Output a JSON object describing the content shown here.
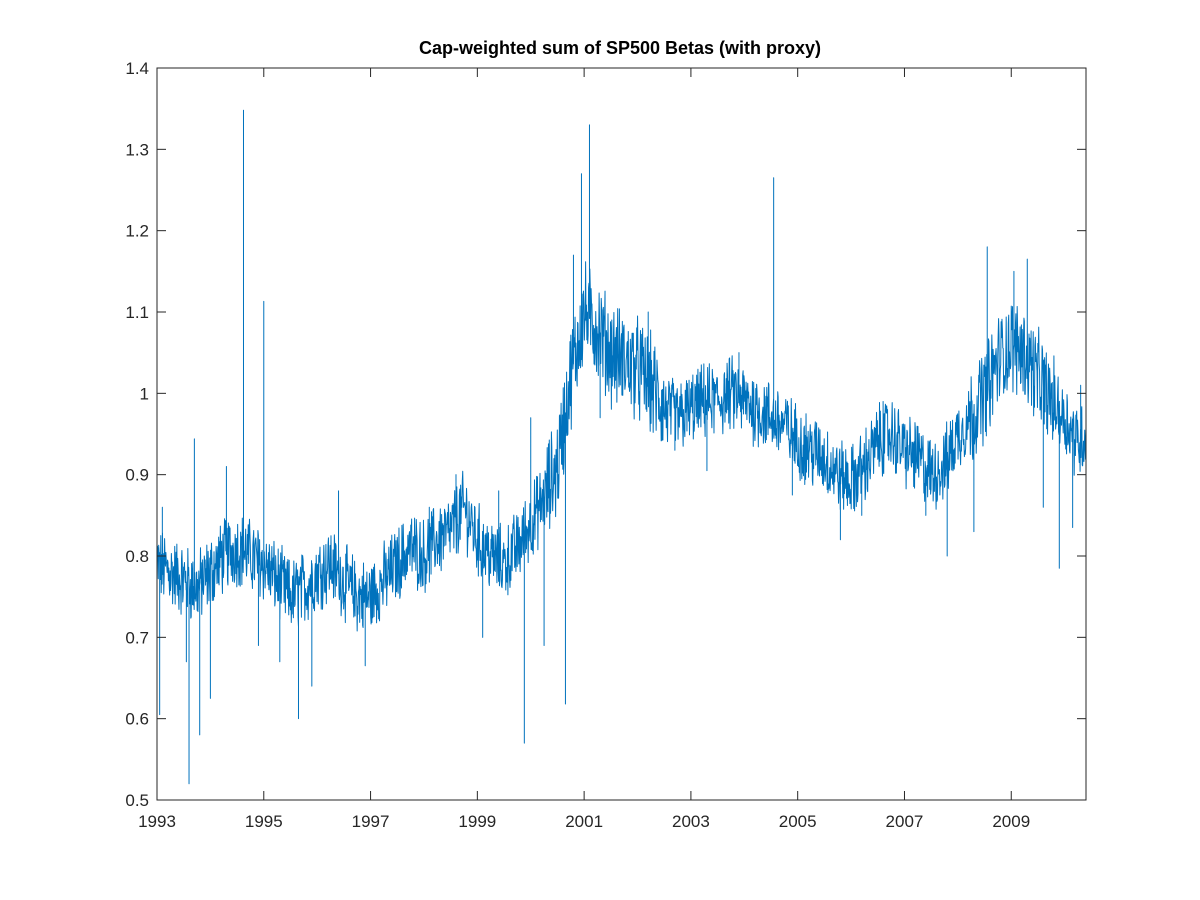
{
  "chart_data": {
    "type": "line",
    "title": "Cap-weighted sum of SP500 Betas (with proxy)",
    "xlabel": "",
    "ylabel": "",
    "xlim": [
      1993.0,
      2010.4
    ],
    "ylim": [
      0.5,
      1.4
    ],
    "x_ticks": [
      1993,
      1995,
      1997,
      1999,
      2001,
      2003,
      2005,
      2007,
      2009
    ],
    "x_tick_labels": [
      "1993",
      "1995",
      "1997",
      "1999",
      "2001",
      "2003",
      "2005",
      "2007",
      "2009"
    ],
    "y_ticks": [
      0.5,
      0.6,
      0.7,
      0.8,
      0.9,
      1.0,
      1.1,
      1.2,
      1.3,
      1.4
    ],
    "y_tick_labels": [
      "0.5",
      "0.6",
      "0.7",
      "0.8",
      "0.9",
      "1",
      "1.1",
      "1.2",
      "1.3",
      "1.4"
    ],
    "grid": false,
    "legend": "none",
    "line_color": "#0072BD",
    "series": [
      {
        "x": [
          1993.0,
          1993.25,
          1993.5,
          1993.75,
          1994.0,
          1994.25,
          1994.5,
          1994.75,
          1995.0,
          1995.25,
          1995.5,
          1995.75,
          1996.0,
          1996.25,
          1996.5,
          1996.75,
          1997.0,
          1997.25,
          1997.5,
          1997.75,
          1998.0,
          1998.25,
          1998.5,
          1998.75,
          1999.0,
          1999.25,
          1999.5,
          1999.75,
          2000.0,
          2000.25,
          2000.5,
          2000.75,
          2001.0,
          2001.25,
          2001.5,
          2001.75,
          2002.0,
          2002.25,
          2002.5,
          2002.75,
          2003.0,
          2003.25,
          2003.5,
          2003.75,
          2004.0,
          2004.25,
          2004.5,
          2004.75,
          2005.0,
          2005.25,
          2005.5,
          2005.75,
          2006.0,
          2006.25,
          2006.5,
          2006.75,
          2007.0,
          2007.25,
          2007.5,
          2007.75,
          2008.0,
          2008.25,
          2008.5,
          2008.75,
          2009.0,
          2009.25,
          2009.5,
          2009.75,
          2010.0,
          2010.25,
          2010.4
        ],
        "y": [
          0.79,
          0.78,
          0.77,
          0.76,
          0.78,
          0.8,
          0.81,
          0.8,
          0.79,
          0.77,
          0.75,
          0.76,
          0.78,
          0.79,
          0.77,
          0.75,
          0.75,
          0.77,
          0.79,
          0.81,
          0.8,
          0.82,
          0.83,
          0.86,
          0.82,
          0.8,
          0.79,
          0.81,
          0.84,
          0.87,
          0.91,
          1.02,
          1.1,
          1.08,
          1.05,
          1.04,
          1.03,
          1.01,
          0.98,
          0.97,
          0.98,
          0.99,
          0.99,
          1.0,
          0.99,
          0.98,
          0.97,
          0.96,
          0.94,
          0.93,
          0.92,
          0.9,
          0.89,
          0.91,
          0.94,
          0.95,
          0.93,
          0.92,
          0.9,
          0.91,
          0.95,
          0.97,
          1.0,
          1.04,
          1.06,
          1.05,
          1.02,
          0.99,
          0.97,
          0.94,
          0.95
        ]
      }
    ],
    "spikes": [
      {
        "x": 1993.05,
        "y": 0.605
      },
      {
        "x": 1993.1,
        "y": 0.86
      },
      {
        "x": 1993.55,
        "y": 0.67
      },
      {
        "x": 1993.6,
        "y": 0.52
      },
      {
        "x": 1993.7,
        "y": 0.944
      },
      {
        "x": 1993.8,
        "y": 0.58
      },
      {
        "x": 1994.0,
        "y": 0.625
      },
      {
        "x": 1994.3,
        "y": 0.91
      },
      {
        "x": 1994.62,
        "y": 1.348
      },
      {
        "x": 1994.9,
        "y": 0.69
      },
      {
        "x": 1995.0,
        "y": 1.113
      },
      {
        "x": 1995.3,
        "y": 0.67
      },
      {
        "x": 1995.65,
        "y": 0.6
      },
      {
        "x": 1995.9,
        "y": 0.64
      },
      {
        "x": 1996.4,
        "y": 0.88
      },
      {
        "x": 1996.9,
        "y": 0.665
      },
      {
        "x": 1998.1,
        "y": 0.86
      },
      {
        "x": 1998.6,
        "y": 0.9
      },
      {
        "x": 1999.1,
        "y": 0.7
      },
      {
        "x": 1999.4,
        "y": 0.88
      },
      {
        "x": 1999.88,
        "y": 0.57
      },
      {
        "x": 2000.0,
        "y": 0.97
      },
      {
        "x": 2000.25,
        "y": 0.69
      },
      {
        "x": 2000.65,
        "y": 0.618
      },
      {
        "x": 2000.8,
        "y": 1.17
      },
      {
        "x": 2000.95,
        "y": 1.27
      },
      {
        "x": 2001.1,
        "y": 1.33
      },
      {
        "x": 2001.3,
        "y": 0.97
      },
      {
        "x": 2002.2,
        "y": 1.1
      },
      {
        "x": 2002.7,
        "y": 0.93
      },
      {
        "x": 2003.3,
        "y": 0.905
      },
      {
        "x": 2003.9,
        "y": 1.05
      },
      {
        "x": 2004.55,
        "y": 1.265
      },
      {
        "x": 2004.9,
        "y": 0.875
      },
      {
        "x": 2005.8,
        "y": 0.82
      },
      {
        "x": 2006.2,
        "y": 0.85
      },
      {
        "x": 2006.6,
        "y": 0.99
      },
      {
        "x": 2007.4,
        "y": 0.85
      },
      {
        "x": 2007.8,
        "y": 0.8
      },
      {
        "x": 2008.3,
        "y": 0.83
      },
      {
        "x": 2008.55,
        "y": 1.18
      },
      {
        "x": 2009.05,
        "y": 1.15
      },
      {
        "x": 2009.3,
        "y": 1.165
      },
      {
        "x": 2009.6,
        "y": 0.86
      },
      {
        "x": 2009.9,
        "y": 0.785
      },
      {
        "x": 2010.15,
        "y": 0.835
      },
      {
        "x": 2010.3,
        "y": 1.01
      }
    ]
  }
}
